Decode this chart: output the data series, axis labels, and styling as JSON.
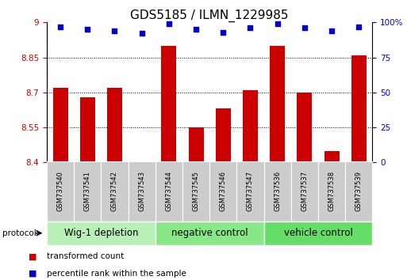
{
  "title": "GDS5185 / ILMN_1229985",
  "samples": [
    "GSM737540",
    "GSM737541",
    "GSM737542",
    "GSM737543",
    "GSM737544",
    "GSM737545",
    "GSM737546",
    "GSM737547",
    "GSM737536",
    "GSM737537",
    "GSM737538",
    "GSM737539"
  ],
  "bar_values": [
    8.72,
    8.68,
    8.72,
    8.405,
    8.9,
    8.55,
    8.63,
    8.71,
    8.9,
    8.7,
    8.45,
    8.86
  ],
  "percentile_values": [
    97,
    95,
    94,
    92,
    99,
    95,
    93,
    96,
    99,
    96,
    94,
    97
  ],
  "bar_color": "#cc0000",
  "percentile_color": "#0000cc",
  "ylim_left": [
    8.4,
    9.0
  ],
  "ylim_right": [
    0,
    100
  ],
  "yticks_left": [
    8.4,
    8.55,
    8.7,
    8.85,
    9.0
  ],
  "yticks_right": [
    0,
    25,
    50,
    75,
    100
  ],
  "ytick_labels_left": [
    "8.4",
    "8.55",
    "8.7",
    "8.85",
    "9"
  ],
  "ytick_labels_right": [
    "0",
    "25",
    "50",
    "75",
    "100%"
  ],
  "groups": [
    {
      "label": "Wig-1 depletion",
      "start": 0,
      "end": 4,
      "color": "#b8f0b8"
    },
    {
      "label": "negative control",
      "start": 4,
      "end": 8,
      "color": "#88e888"
    },
    {
      "label": "vehicle control",
      "start": 8,
      "end": 12,
      "color": "#66dd66"
    }
  ],
  "protocol_label": "protocol",
  "legend_items": [
    {
      "color": "#cc0000",
      "label": "transformed count"
    },
    {
      "color": "#0000cc",
      "label": "percentile rank within the sample"
    }
  ],
  "background_color": "#ffffff",
  "title_fontsize": 11,
  "tick_fontsize": 7.5,
  "group_label_fontsize": 8.5,
  "sample_fontsize": 6.0,
  "bar_width": 0.55
}
